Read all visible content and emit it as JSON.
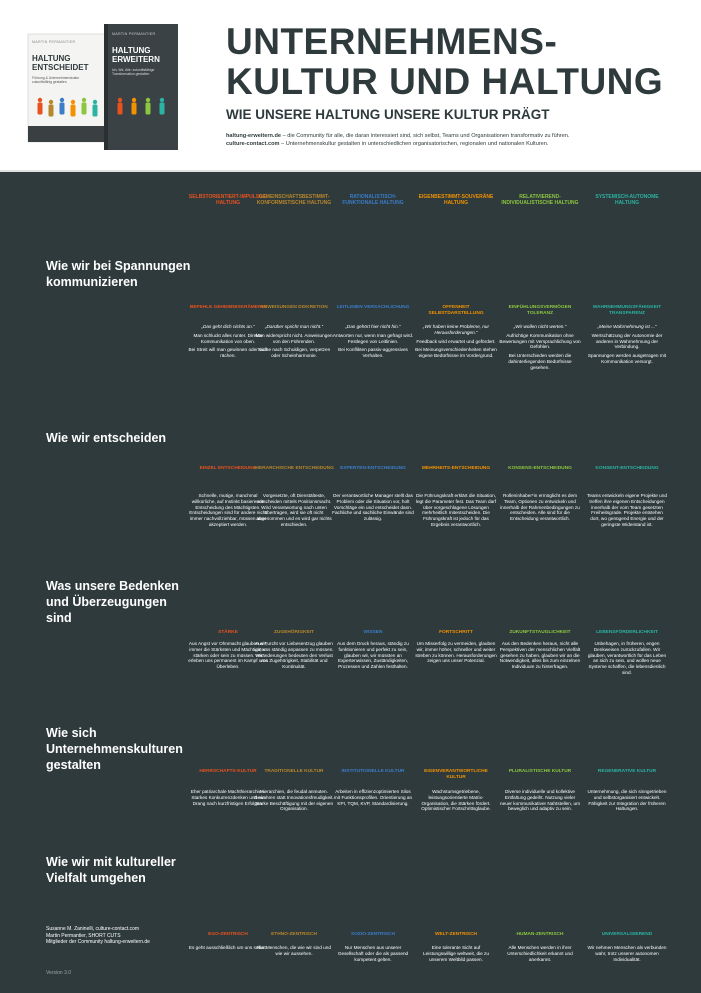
{
  "header": {
    "books": [
      {
        "author": "MARTIN PERMANTIER",
        "title": "HALTUNG ENTSCHEIDET",
        "subtitle": "Führung & Unternehmenskultur zukunftsfähig gestalten"
      },
      {
        "author": "MARTIN PERMANTIER",
        "title": "HALTUNG ERWEITERN",
        "subtitle": "Ich, Wir, Alle: zukunftsfähige Transformation gestalten"
      }
    ],
    "title_lines": [
      "UNTERNEHMENS-",
      "KULTUR UND HALTUNG"
    ],
    "subtitle": "WIE UNSERE HALTUNG UNSERE KULTUR PRÄGT",
    "lines": [
      {
        "link": "haltung-erweitern.de",
        "text": " – die Community für alle, die daran interessiert sind, sich selbst, Teams und Organisationen transformativ zu führen."
      },
      {
        "link": "culture-contact.com",
        "text": " – Unternehmenskultur gestalten in unterschiedlichen organisatorischen, regionalen und nationalen Kulturen."
      }
    ]
  },
  "columns": [
    {
      "title": "SELBSTORIENTIERT-IMPULSIVE HALTUNG",
      "color": "#e8521f"
    },
    {
      "title": "GEMEINSCHAFTSBESTIMMT-KONFORMISTISCHE HALTUNG",
      "color": "#b8862b"
    },
    {
      "title": "RATIONALISTISCH-FUNKTIONALE HALTUNG",
      "color": "#3b7dc9"
    },
    {
      "title": "EIGENBESTIMMT-SOUVERÄNE HALTUNG",
      "color": "#f39200"
    },
    {
      "title": "RELATIVIEREND-INDIVIDUALISTISCHE HALTUNG",
      "color": "#8cc63f"
    },
    {
      "title": "SYSTEMISCH-AUTONOME HALTUNG",
      "color": "#2bb3a3"
    }
  ],
  "rows": [
    {
      "label": "Wie wir bei Spannungen kommunizieren",
      "items": [
        {
          "name": "BEFEHLE GEHEIMNISKRÄMEREI",
          "quote": "„Das geht dich nichts an.“",
          "texts": [
            "Man schluckt alles runter. Direkte Kommunikation von oben.",
            "Bei Streit will man gewinnen oder sich rächen."
          ]
        },
        {
          "name": "ANWEISUNGEN DISKRETION",
          "quote": "„Darüber spricht man nicht.“",
          "texts": [
            "Man widerspricht nicht. Anweisungen von den Führenden.",
            "Suche nach Schuldigen, verpetzen oder Scheinharmonie."
          ]
        },
        {
          "name": "LEITLINIEN VERSACHLICHUNG",
          "quote": "„Das gehört hier nicht hin.“",
          "texts": [
            "Antworten nur, wenn man gefragt wird. Festlegen von Leitlinien.",
            "Bei Konflikten passiv-aggressives Verhalten."
          ]
        },
        {
          "name": "OFFENHEIT SELBSTDARSTELLUNG",
          "quote": "„Wir haben keine Probleme, nur Herausforderungen.“",
          "texts": [
            "Feedback wird erwartet und gefördert.",
            "Bei Meinungsverschiedenheiten stehen eigene Bedürfnisse im Vordergrund."
          ]
        },
        {
          "name": "EINFÜHLUNGSVERMÖGEN TOLERANZ",
          "quote": "„Wir wollen nicht werten.“",
          "texts": [
            "Aufrichtige Kommunikation ohne Bewertungen mit Versprachlichung von Gefühlen.",
            "Bei Unterschieden werden die dahinterliegenden Bedürfnisse gesehen."
          ]
        },
        {
          "name": "WAHRNEHMUNGSFÄHIGKEIT TRANSPARENZ",
          "quote": "„Meine Wahrnehmung ist ...“",
          "texts": [
            "Wertschätzung der Autonomie der anderen in Wahrnehmung der Verbindung.",
            "Spannungen werden ausgetragen mit Kommunikation versorgt."
          ]
        }
      ]
    },
    {
      "label": "Wie wir entscheiden",
      "items": [
        {
          "name": "EINZEL ENTSCHEIDUNG",
          "texts": [
            "Schnelle, mutige, manchmal willkürliche, auf Instinkt basierende Entscheidung des Mächtigsten. Entscheidungen sind für andere nicht immer nachvollziehbar, müssen aber akzeptiert werden."
          ]
        },
        {
          "name": "HIERARCHISCHE ENTSCHEIDUNG",
          "texts": [
            "Vorgesetzte, oft Dienstälteste, entscheiden mittels Positionsmacht. Wird Verantwortung nach unten übertragen, wird sie oft nicht angenommen und es wird gar nichts entschieden."
          ]
        },
        {
          "name": "EXPERTEN-ENTSCHEIDUNG",
          "texts": [
            "Der verantwortliche Manager stellt das Problem oder die Situation vor, holt Vorschläge ein und entscheidet dann. Fachliche und sachliche Einwände sind zulässig."
          ]
        },
        {
          "name": "MEHRHEITS-ENTSCHEIDUNG",
          "texts": [
            "Die Führungskraft erklärt die Situation, legt die Parameter fest. Das Team darf über vorgeschlagene Lösungen mehrheitlich mitentscheiden. Die Führungskraft ist jedoch für das Ergebnis verantwortlich."
          ]
        },
        {
          "name": "KONSENS-ENTSCHEIDUNG",
          "texts": [
            "Rolleninhaber*in ermöglicht es dem Team, Optionen zu entwickeln und innerhalb der Rahmenbedingungen zu entscheiden. Alle sind für die Entscheidung verantwortlich."
          ]
        },
        {
          "name": "KONSENT-ENTSCHEIDUNG",
          "texts": [
            "Teams entwickeln eigene Projekte und treffen ihre eigenen Entscheidungen innerhalb der vom Team gesetzten Freiheitsgrade. Projekte entstehen dort, wo genügend Energie und der geringste Widerstand ist."
          ]
        }
      ]
    },
    {
      "label": "Was unsere Bedenken und Überzeugungen sind",
      "items": [
        {
          "name": "STÄRKE",
          "texts": [
            "Aus Angst vor Ohnmacht glauben wir, immer die Stärksten und Mächtigsten stärken oder sein zu müssen. Wir erleben uns permanent im Kampf ums Überleben."
          ]
        },
        {
          "name": "ZUGEHÖRIGKEIT",
          "texts": [
            "Aus Furcht vor Liebesentzug glauben wir, uns ständig anpassen zu müssen. Veränderungen bedeuten den Verlust von Zugehörigkeit, Stabilität und Kontinuität."
          ]
        },
        {
          "name": "WISSEN",
          "texts": [
            "Aus dem Druck heraus, ständig zu funktionieren und perfekt zu sein, glauben wir, wir müssten an Expertenwissen, Zuständigkeiten, Prozessen und Zahlen festhalten."
          ]
        },
        {
          "name": "FORTSCHRITT",
          "texts": [
            "Um Misserfolg zu vermeiden, glauben wir, immer höher, schneller und weiter streben zu können. Herausforderungen zeigen uns unser Potenzial."
          ]
        },
        {
          "name": "ZUKUNFTSTAUGLICHKEIT",
          "texts": [
            "Aus den Bedenken heraus, nicht alle Perspektiven der menschlichen Vielfalt gesehen zu haben, glauben wir an die Notwendigkeit, alles bis zum einzelnen Individuum zu hinterfragen."
          ]
        },
        {
          "name": "LEBENSFÖRDERLICHKEIT",
          "texts": [
            "Unbehagen, in früheren, engen Denkweisen zurückzufallen. Wir glauben, verantwortlich für das Leben an sich zu sein, und wollen neue Systeme schaffen, die lebensdienlich sind."
          ]
        }
      ]
    },
    {
      "label": "Wie sich Unternehmenskulturen gestalten",
      "items": [
        {
          "name": "HERRSCHAFTS-KULTUR",
          "texts": [
            "Eher patriarchale Machthierarchien. Starkes Konkurrenzdenken und ein Drang nach kurzfristigen Erfolgen."
          ]
        },
        {
          "name": "TRADITIONELLE KULTUR",
          "texts": [
            "Hierarchien, die feudal anmuten. Bewahren statt Innovationsfreudigkeit. Starke Beschäftigung mit der eigenen Organisation."
          ]
        },
        {
          "name": "INSTITUTIONELLE KULTUR",
          "texts": [
            "Arbeiten in effizienzoptimierten Silos mit Funktionsprofilen. Orientierung an KPI, TQM, KVP, Standardisierung."
          ]
        },
        {
          "name": "EIGENVERANTWORTLICHE KULTUR",
          "texts": [
            "Wachstumsgetriebene, leistungsorientierte Matrix-Organisation, die Stärken fördert. Optimistischer Fortschrittsglaube."
          ]
        },
        {
          "name": "PLURALISTISCHE KULTUR",
          "texts": [
            "Diverse individuelle und kollektive Entfaltung gedeiht. Nutzung vieler neuer kommunikativer Nahtstellen, um beweglich und adaptiv zu sein."
          ]
        },
        {
          "name": "REGENERATIVE KULTUR",
          "texts": [
            "Unternehmung, die sich sinngetrieben und selbstorganisiert entwickelt. Fähigkeit zur Integration der früheren Haltungen."
          ]
        }
      ]
    },
    {
      "label": "Wie wir mit kultureller Vielfalt umgehen",
      "items": [
        {
          "name": "EGO-ZENTRISCH",
          "texts": [
            "Es geht ausschließlich um uns selbst."
          ]
        },
        {
          "name": "ETHNO-ZENTRISCH",
          "texts": [
            "Nur Menschen, die wie wir sind und wie wir aussehen."
          ]
        },
        {
          "name": "SOZIO-ZENTRISCH",
          "texts": [
            "Nur Menschen aus unserer Gesellschaft oder die als passend kompetent gelten."
          ]
        },
        {
          "name": "WELT-ZENTRISCH",
          "texts": [
            "Eine tolerante Sicht auf Leistungswillige weltweit, die zu unserem Weltbild passen."
          ]
        },
        {
          "name": "HUMAN-ZENTRISCH",
          "texts": [
            "Alle Menschen werden in ihrer Unterschiedlichkeit erkannt und anerkannt."
          ]
        },
        {
          "name": "UNIVERSALISIEREND",
          "texts": [
            "Wir nehmen Menschen als verbunden wahr, trotz unserer autonomen Individualität."
          ]
        }
      ]
    }
  ],
  "footer": {
    "credits": [
      "Susanne M. Zaninelli, culture-contact.com",
      "Martin Permantier, SHORT CUTS",
      "Mitglieder der Community haltung-erweitern.de"
    ],
    "version": "Version 3.0"
  }
}
